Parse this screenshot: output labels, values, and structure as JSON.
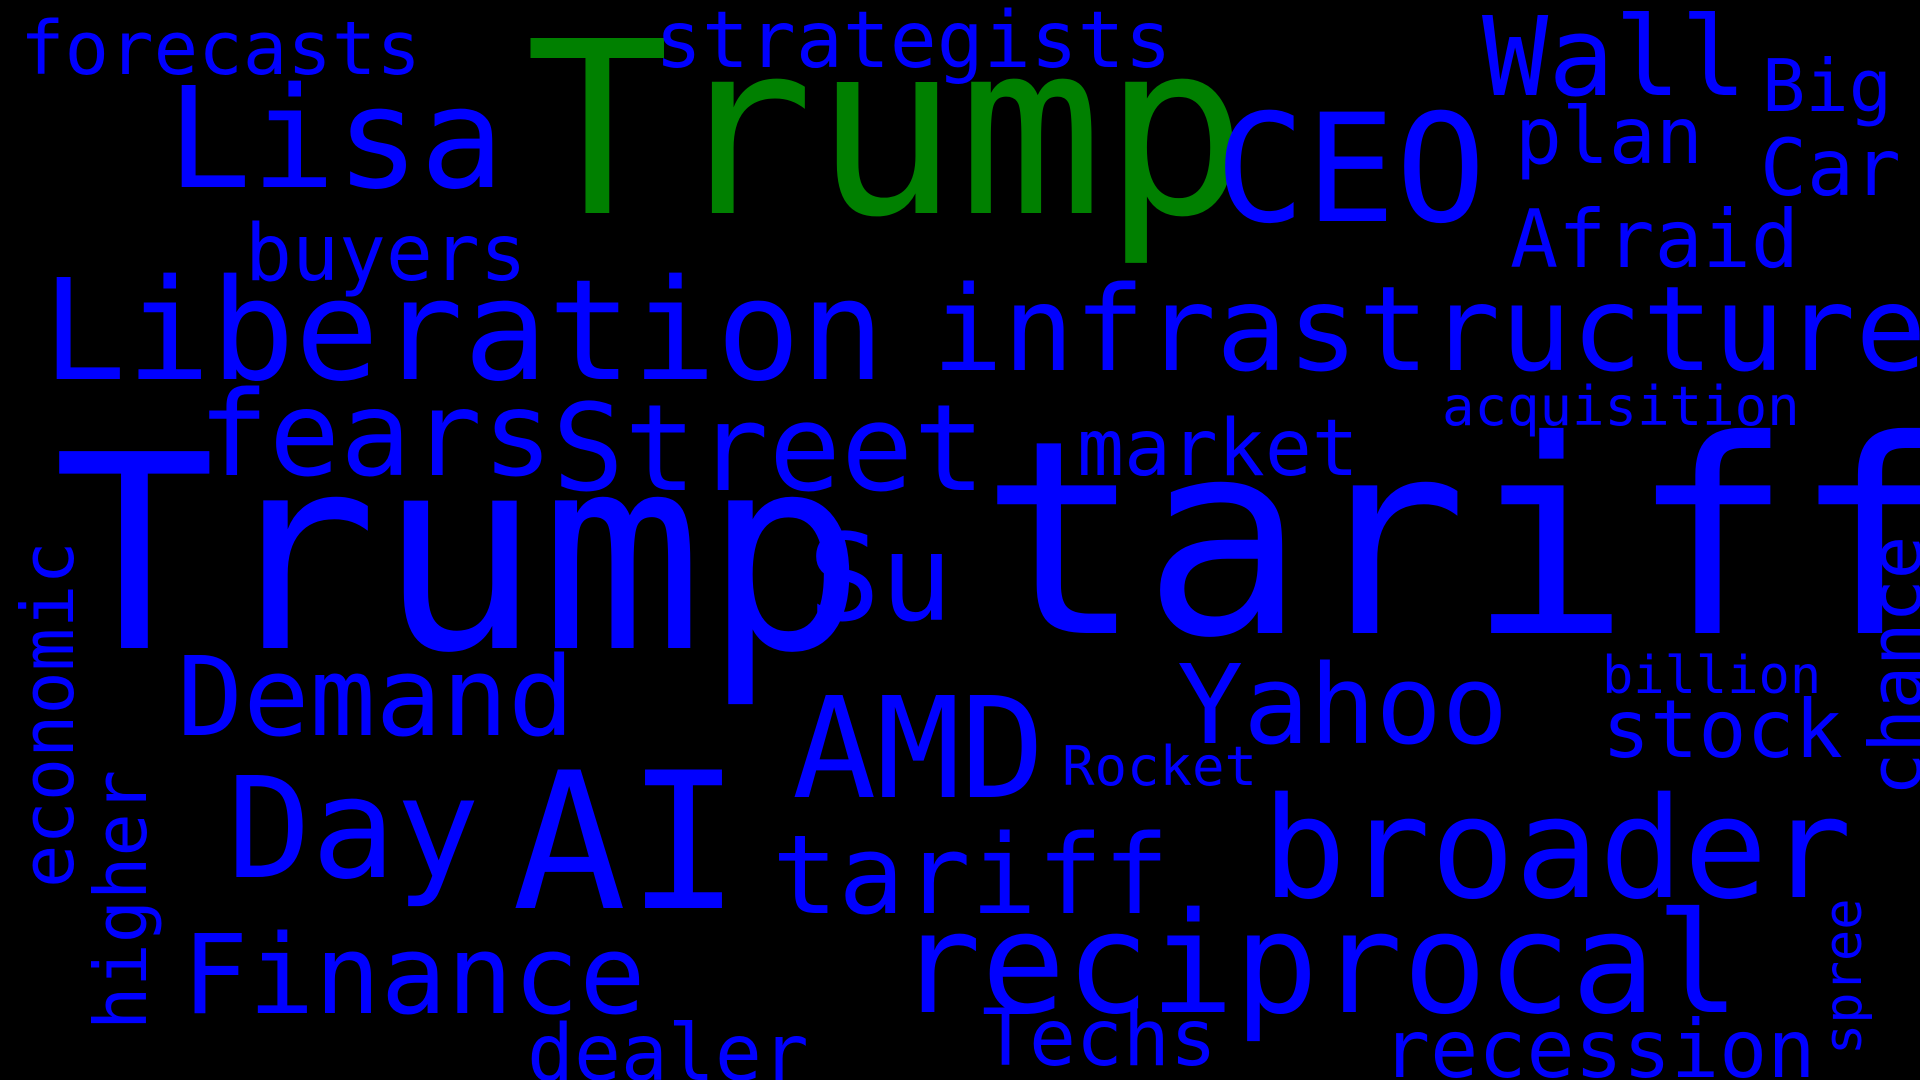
{
  "palette": {
    "background": "#000000",
    "primary": "#0000ff",
    "highlight": "#008000"
  },
  "words": {
    "forecasts": "forecasts",
    "trump_green": "Trump",
    "strategists": "strategists",
    "wall": "Wall",
    "big": "Big",
    "lisa": "Lisa",
    "ceo": "CEO",
    "plan": "plan",
    "car": "Car",
    "buyers": "buyers",
    "afraid": "Afraid",
    "liberation": "Liberation",
    "infrastructure": "infrastructure",
    "acquisition": "acquisition",
    "fears": "fears",
    "street": "Street",
    "market": "market",
    "economic": "economic",
    "trump_blue": "Trump",
    "su": "Su",
    "tariff": "tariff",
    "chance": "chance",
    "billion": "billion",
    "demand": "Demand",
    "yahoo": "Yahoo",
    "stock": "stock",
    "amd": "AMD",
    "rocket": "Rocket",
    "higher": "higher",
    "day": "Day",
    "ai": "AI",
    "tariff_small": "tariff",
    "broader": "broader",
    "finance": "Finance",
    "reciprocal": "reciprocal",
    "spree": "spree",
    "dealer": "dealer",
    "techs": "Techs",
    "recession": "recession"
  }
}
